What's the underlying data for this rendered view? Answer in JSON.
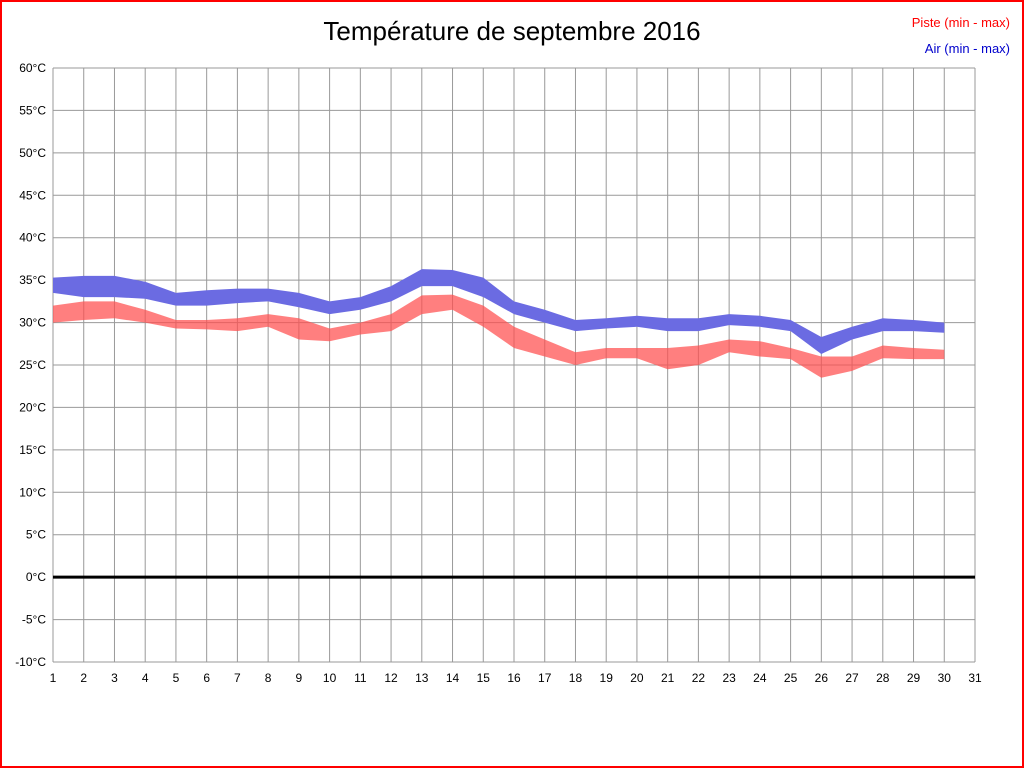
{
  "title": "Température de septembre 2016",
  "legend": {
    "piste_label": "Piste (min - max)",
    "air_label": "Air (min - max)",
    "piste_color": "#ff0000",
    "air_color": "#0000cc"
  },
  "chart_data": {
    "type": "area",
    "title": "Température de septembre 2016",
    "xlabel": "",
    "ylabel": "",
    "xlim": [
      1,
      31
    ],
    "ylim": [
      -10,
      60
    ],
    "y_tick_step": 5,
    "grid": true,
    "zero_line": 0,
    "x": [
      1,
      2,
      3,
      4,
      5,
      6,
      7,
      8,
      9,
      10,
      11,
      12,
      13,
      14,
      15,
      16,
      17,
      18,
      19,
      20,
      21,
      22,
      23,
      24,
      25,
      26,
      27,
      28,
      29,
      30
    ],
    "x_tick_labels": [
      "1",
      "2",
      "3",
      "4",
      "5",
      "6",
      "7",
      "8",
      "9",
      "10",
      "11",
      "12",
      "13",
      "14",
      "15",
      "16",
      "17",
      "18",
      "19",
      "20",
      "21",
      "22",
      "23",
      "24",
      "25",
      "26",
      "27",
      "28",
      "29",
      "30",
      "31"
    ],
    "y_tick_labels": [
      "60°C",
      "55°C",
      "50°C",
      "45°C",
      "40°C",
      "35°C",
      "30°C",
      "25°C",
      "20°C",
      "15°C",
      "10°C",
      "5°C",
      "0°C",
      "-5°C",
      "-10°C"
    ],
    "series": [
      {
        "name": "Air (min - max)",
        "color": "#6b6be2",
        "opacity": 1,
        "min": [
          33.5,
          33.0,
          33.0,
          32.8,
          32.0,
          32.0,
          32.3,
          32.5,
          31.8,
          31.0,
          31.5,
          32.5,
          34.3,
          34.3,
          33.0,
          31.0,
          30.0,
          29.0,
          29.3,
          29.5,
          29.0,
          29.0,
          29.7,
          29.5,
          29.0,
          26.3,
          28.0,
          29.0,
          29.0,
          28.8
        ],
        "max": [
          35.3,
          35.5,
          35.5,
          34.8,
          33.5,
          33.8,
          34.0,
          34.0,
          33.5,
          32.5,
          33.0,
          34.3,
          36.3,
          36.2,
          35.3,
          32.5,
          31.5,
          30.3,
          30.5,
          30.8,
          30.5,
          30.5,
          31.0,
          30.8,
          30.3,
          28.3,
          29.5,
          30.5,
          30.3,
          30.0
        ]
      },
      {
        "name": "Piste (min - max)",
        "color": "#ff4d4d",
        "opacity": 0.72,
        "min": [
          30.0,
          30.3,
          30.5,
          30.0,
          29.3,
          29.2,
          29.0,
          29.5,
          28.0,
          27.8,
          28.6,
          29.0,
          31.0,
          31.5,
          29.5,
          27.0,
          26.0,
          25.0,
          25.8,
          25.8,
          24.5,
          25.0,
          26.5,
          26.0,
          25.7,
          23.5,
          24.3,
          25.8,
          25.7,
          25.7
        ],
        "max": [
          32.0,
          32.5,
          32.5,
          31.5,
          30.3,
          30.3,
          30.5,
          31.0,
          30.5,
          29.3,
          30.0,
          31.0,
          33.2,
          33.3,
          32.0,
          29.5,
          28.0,
          26.5,
          27.0,
          27.0,
          27.0,
          27.3,
          28.0,
          27.8,
          27.0,
          26.0,
          26.0,
          27.3,
          27.0,
          26.8
        ]
      }
    ]
  }
}
